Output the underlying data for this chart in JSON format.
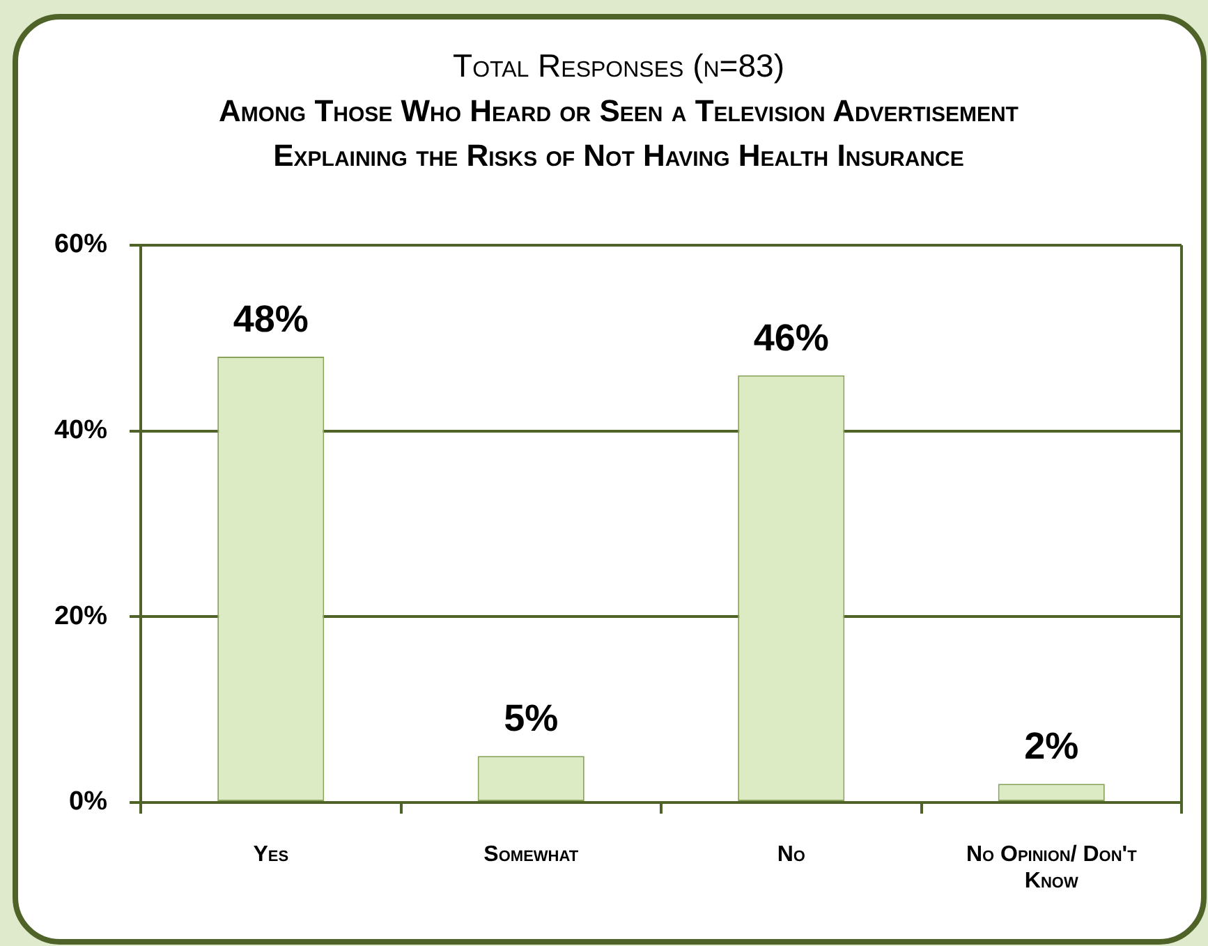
{
  "chart_data": {
    "type": "bar",
    "subtitle": "Total Responses (n=83)",
    "title": "Among Those Who Heard or Seen a Television Advertisement Explaining the Risks of Not Having Health Insurance",
    "categories": [
      "Yes",
      "Somewhat",
      "No",
      "No Opinion/ Don't Know"
    ],
    "values": [
      48,
      5,
      46,
      2
    ],
    "color": "#dcebc3",
    "value_labels": [
      "48%",
      "5%",
      "46%",
      "2%"
    ],
    "ylim": [
      0,
      60
    ],
    "yticks": [
      {
        "value": 0,
        "label": "0%"
      },
      {
        "value": 20,
        "label": "20%"
      },
      {
        "value": 40,
        "label": "40%"
      },
      {
        "value": 60,
        "label": "60%"
      }
    ],
    "grid": "y"
  }
}
